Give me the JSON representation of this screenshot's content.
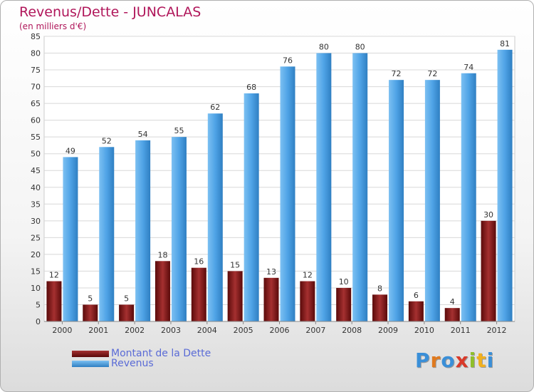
{
  "chart_data": {
    "type": "bar",
    "title": "Revenus/Dette - JUNCALAS",
    "subtitle": "(en milliers d'€)",
    "categories": [
      "2000",
      "2001",
      "2002",
      "2003",
      "2004",
      "2005",
      "2006",
      "2007",
      "2008",
      "2009",
      "2010",
      "2011",
      "2012"
    ],
    "series": [
      {
        "name": "Montant de la Dette",
        "values": [
          12,
          5,
          5,
          18,
          16,
          15,
          13,
          12,
          10,
          8,
          6,
          4,
          30
        ],
        "color": "#7a1414"
      },
      {
        "name": "Revenus",
        "values": [
          49,
          52,
          54,
          55,
          62,
          68,
          76,
          80,
          80,
          72,
          72,
          74,
          81
        ],
        "color": "#4fa3e6"
      }
    ],
    "ylim": [
      0,
      85
    ],
    "ytick_step": 5,
    "grid": true,
    "legend_position": "bottom-left"
  },
  "logo": {
    "text": "Proxiti"
  }
}
